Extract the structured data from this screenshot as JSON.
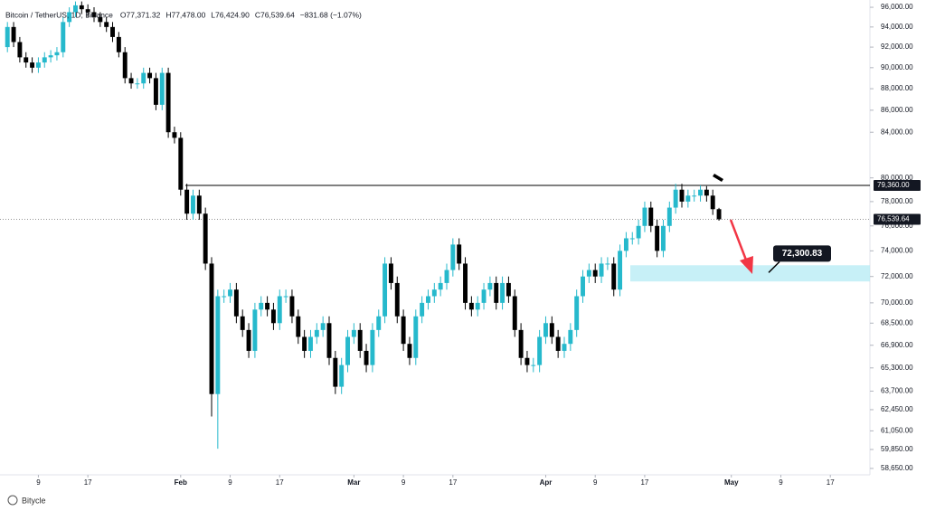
{
  "chart_data": {
    "type": "candlestick",
    "title": "Bitcoin / TetherUS, 1D, Binance",
    "ohlc_legend": [
      "O77,371.32",
      "H77,478.00",
      "L76,424.90",
      "C76,539.64",
      "−831.68 (−1.07%)"
    ],
    "watermark": "Bitycle",
    "log_scale": true,
    "up_color": "#26b9cc",
    "down_color": "#000000",
    "ylim": [
      58250,
      96750
    ],
    "xlim": [
      -1.2,
      139.4
    ],
    "yticks": [
      {
        "value": 96000,
        "label": "96,000.00"
      },
      {
        "value": 94000,
        "label": "94,000.00"
      },
      {
        "value": 92000,
        "label": "92,000.00"
      },
      {
        "value": 90000,
        "label": "90,000.00"
      },
      {
        "value": 88000,
        "label": "88,000.00"
      },
      {
        "value": 86000,
        "label": "86,000.00"
      },
      {
        "value": 84000,
        "label": "84,000.00"
      },
      {
        "value": 80000,
        "label": "80,000.00"
      },
      {
        "value": 78000,
        "label": "78,000.00"
      },
      {
        "value": 76000,
        "label": "76,000.00"
      },
      {
        "value": 74000,
        "label": "74,000.00"
      },
      {
        "value": 72000,
        "label": "72,000.00"
      },
      {
        "value": 70000,
        "label": "70,000.00"
      },
      {
        "value": 68500,
        "label": "68,500.00"
      },
      {
        "value": 66900,
        "label": "66,900.00"
      },
      {
        "value": 65300,
        "label": "65,300.00"
      },
      {
        "value": 63700,
        "label": "63,700.00"
      },
      {
        "value": 62450,
        "label": "62,450.00"
      },
      {
        "value": 61050,
        "label": "61,050.00"
      },
      {
        "value": 59850,
        "label": "59,850.00"
      },
      {
        "value": 58650,
        "label": "58,650.00"
      }
    ],
    "xticks": [
      {
        "value": 5,
        "label": "9"
      },
      {
        "value": 13,
        "label": "17"
      },
      {
        "value": 28,
        "label": "Feb"
      },
      {
        "value": 36,
        "label": "9"
      },
      {
        "value": 44,
        "label": "17"
      },
      {
        "value": 56,
        "label": "Mar"
      },
      {
        "value": 64,
        "label": "9"
      },
      {
        "value": 72,
        "label": "17"
      },
      {
        "value": 87,
        "label": "Apr"
      },
      {
        "value": 95,
        "label": "9"
      },
      {
        "value": 103,
        "label": "17"
      },
      {
        "value": 117,
        "label": "May"
      },
      {
        "value": 125,
        "label": "9"
      },
      {
        "value": 133,
        "label": "17"
      }
    ],
    "level": {
      "value": 79360,
      "label": "79,360.00"
    },
    "last_price": {
      "value": 76539.64,
      "label": "76,539.64"
    },
    "target": {
      "value": 72300.83,
      "label": "72,300.83"
    },
    "zone": [
      71620,
      72870
    ],
    "open": [
      92000,
      94000,
      92500,
      91000,
      90500,
      90000,
      90500,
      91000,
      91200,
      91500,
      94500,
      95500,
      96200,
      95800,
      95500,
      95000,
      94500,
      94000,
      93000,
      91500,
      89000,
      88500,
      88500,
      89500,
      89000,
      86500,
      89500,
      84000,
      83500,
      79000,
      77000,
      78500,
      77000,
      73000,
      63500,
      70500,
      70500,
      71000,
      69000,
      68000,
      66500,
      69500,
      70000,
      69500,
      68500,
      70500,
      70500,
      69000,
      67500,
      66500,
      67500,
      68000,
      68500,
      66000,
      64000,
      65500,
      67500,
      68000,
      66500,
      65500,
      68000,
      69000,
      73000,
      71500,
      69000,
      67000,
      66000,
      69000,
      70000,
      70500,
      71000,
      71500,
      72500,
      74500,
      73000,
      70000,
      69500,
      70000,
      71000,
      71500,
      70000,
      71500,
      70500,
      68000,
      66000,
      65500,
      65500,
      67500,
      68500,
      67500,
      66500,
      67000,
      68000,
      70500,
      72000,
      72500,
      72000,
      73000,
      73000,
      71000,
      74000,
      75000,
      75000,
      76000,
      77500,
      76000,
      74000,
      76000,
      77500,
      79000,
      78000,
      78500,
      78500,
      79000,
      78500,
      77371.32
    ],
    "high": [
      94500,
      94500,
      93000,
      91500,
      91000,
      91000,
      91500,
      91700,
      92000,
      95000,
      96000,
      96600,
      96600,
      96300,
      96000,
      95500,
      95000,
      94500,
      93500,
      92000,
      89500,
      89000,
      90000,
      90000,
      89500,
      90000,
      90000,
      84500,
      84000,
      79500,
      79000,
      79000,
      77500,
      73500,
      71000,
      71000,
      71500,
      71500,
      69500,
      68500,
      70000,
      70500,
      70500,
      70000,
      71000,
      71000,
      71000,
      69500,
      68000,
      68000,
      68500,
      69000,
      69000,
      66500,
      66000,
      68000,
      68500,
      68500,
      67000,
      68500,
      69500,
      73500,
      73500,
      72000,
      69500,
      67500,
      69500,
      70500,
      71000,
      71500,
      72000,
      73000,
      75000,
      75000,
      73500,
      70500,
      70500,
      71500,
      72000,
      72000,
      72000,
      72000,
      71000,
      68500,
      66500,
      66000,
      68000,
      69000,
      69000,
      68000,
      67500,
      68500,
      71000,
      72500,
      73000,
      73000,
      73500,
      73500,
      73500,
      74500,
      75500,
      75500,
      76500,
      78000,
      78000,
      76500,
      76500,
      78000,
      79500,
      79500,
      79000,
      79000,
      79360,
      79300,
      79000,
      77478
    ],
    "low": [
      91500,
      92000,
      90500,
      90000,
      89500,
      89500,
      90000,
      90500,
      90700,
      91000,
      94000,
      95000,
      95300,
      95000,
      94500,
      94000,
      93500,
      92500,
      91000,
      88500,
      88000,
      88000,
      88000,
      88500,
      86000,
      86000,
      83500,
      83000,
      78500,
      76500,
      76500,
      76500,
      72500,
      62000,
      59900,
      70000,
      70000,
      68500,
      67500,
      66000,
      66000,
      69000,
      69000,
      68000,
      68000,
      70000,
      68500,
      67000,
      66000,
      66000,
      67000,
      67500,
      65500,
      63500,
      63500,
      65000,
      67000,
      66000,
      65000,
      65000,
      67500,
      68500,
      71000,
      68500,
      66500,
      65500,
      65500,
      68500,
      69500,
      70000,
      70500,
      71000,
      72000,
      72500,
      69500,
      69000,
      69000,
      69500,
      70500,
      69500,
      69500,
      70000,
      67500,
      65500,
      65000,
      65000,
      65000,
      67000,
      67000,
      66000,
      66000,
      66500,
      67500,
      70000,
      71500,
      71500,
      71500,
      72500,
      70500,
      70500,
      73500,
      74500,
      74500,
      75500,
      75500,
      73500,
      73500,
      75500,
      77000,
      77500,
      77500,
      78000,
      78000,
      78000,
      76900,
      76424.9
    ],
    "close": [
      94000,
      92500,
      91000,
      90500,
      90000,
      90500,
      91000,
      91200,
      91500,
      94500,
      95500,
      96200,
      95800,
      95500,
      95000,
      94500,
      94000,
      93000,
      91500,
      89000,
      88500,
      88500,
      89500,
      89000,
      86500,
      89500,
      84000,
      83500,
      79000,
      77000,
      78500,
      77000,
      73000,
      63500,
      70500,
      70500,
      71000,
      69000,
      68000,
      66500,
      69500,
      70000,
      69500,
      68500,
      70500,
      70500,
      69000,
      67500,
      66500,
      67500,
      68000,
      68500,
      66000,
      64000,
      65500,
      67500,
      68000,
      66500,
      65500,
      68000,
      69000,
      73000,
      71500,
      69000,
      67000,
      66000,
      69000,
      70000,
      70500,
      71000,
      71500,
      72500,
      74500,
      73000,
      70000,
      69500,
      70000,
      71000,
      71500,
      70000,
      71500,
      70500,
      68000,
      66000,
      65500,
      65500,
      67500,
      68500,
      67500,
      66500,
      67000,
      68000,
      70500,
      72000,
      72500,
      72000,
      73000,
      73000,
      71000,
      74000,
      75000,
      75000,
      76000,
      77500,
      76000,
      74000,
      76000,
      77500,
      79000,
      78000,
      78500,
      78500,
      79000,
      78500,
      77371.32,
      76539.64
    ]
  }
}
